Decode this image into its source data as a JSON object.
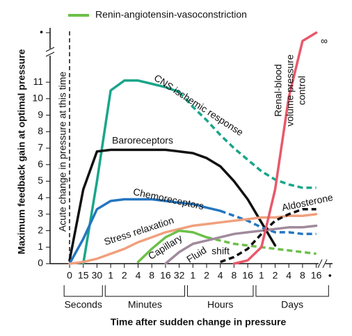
{
  "chart_data": {
    "type": "line",
    "title_y": "Maximum feedback gain at optimal pressure",
    "title_x": "Time after sudden change in pressure",
    "marker_label": "Acute change in pressure at this time",
    "infinity_label": "∞",
    "categories": [
      "0",
      "15",
      "30",
      "1",
      "2",
      "4",
      "8",
      "16",
      "32",
      "1",
      "2",
      "4",
      "8",
      "16",
      "1",
      "2",
      "4",
      "8",
      "16",
      "•"
    ],
    "groups": [
      "Seconds",
      "Minutes",
      "Hours",
      "Days"
    ],
    "ylim": [
      0,
      14
    ],
    "yticks": [
      0,
      1,
      2,
      3,
      4,
      5,
      6,
      7,
      8,
      9,
      10,
      11,
      {
        "value": 14,
        "label": "•"
      }
    ],
    "series": [
      {
        "label": [
          "CNS ischemic response"
        ],
        "color": "#1aa58a",
        "values": [
          null,
          0,
          5,
          10.5,
          11.1,
          11.1,
          10.9,
          10.7,
          10.4,
          null,
          null,
          null,
          null,
          null,
          null,
          null,
          null,
          null,
          null,
          null
        ],
        "dashed_values": [
          null,
          null,
          null,
          null,
          null,
          null,
          null,
          null,
          10.4,
          9.5,
          8.7,
          7.8,
          7,
          6.3,
          5.6,
          5.1,
          4.8,
          4.6,
          4.6,
          null
        ]
      },
      {
        "label": [
          "Baroreceptors"
        ],
        "color": "#111111",
        "values": [
          0.2,
          4.5,
          6.8,
          6.9,
          6.9,
          6.9,
          6.9,
          6.9,
          6.8,
          6.7,
          6.4,
          5.9,
          5,
          3.9,
          2.5,
          1.1,
          null,
          null,
          null,
          null
        ]
      },
      {
        "label": [
          "Chemoreceptors"
        ],
        "color": "#2476c0",
        "values": [
          0,
          1.5,
          3.3,
          3.8,
          3.9,
          3.9,
          3.9,
          3.8,
          3.7,
          3.6,
          3.4,
          3.2,
          null,
          null,
          null,
          null,
          null,
          null,
          null,
          null
        ],
        "dashed_values": [
          null,
          null,
          null,
          null,
          null,
          null,
          null,
          null,
          null,
          null,
          null,
          3.2,
          2.9,
          2.6,
          2.2,
          1.9,
          1.9,
          1.8,
          1.8,
          null
        ]
      },
      {
        "label": [
          "Stress relaxation"
        ],
        "color": "#f0a07e",
        "values": [
          0,
          0.1,
          0.3,
          0.6,
          0.9,
          1.3,
          1.6,
          1.9,
          2.1,
          2.3,
          2.4,
          2.5,
          2.6,
          2.7,
          2.8,
          2.8,
          2.9,
          2.9,
          3,
          null
        ]
      },
      {
        "name": "Renin-angiotensin-vasoconstriction",
        "color": "#6cc04a",
        "values": [
          null,
          null,
          null,
          null,
          null,
          0.1,
          0.9,
          1.6,
          2,
          1.9,
          1.6,
          null,
          null,
          null,
          null,
          null,
          null,
          null,
          null,
          null
        ],
        "dashed_values": [
          null,
          null,
          null,
          null,
          null,
          null,
          null,
          null,
          null,
          null,
          1.6,
          1.4,
          1.2,
          1.1,
          1,
          0.9,
          0.8,
          0.7,
          0.6,
          null
        ]
      },
      {
        "label": [
          "Capillary",
          "Fluid",
          "shift"
        ],
        "color": "#a08a9c",
        "values": [
          null,
          null,
          null,
          null,
          null,
          null,
          null,
          0,
          0.7,
          1.2,
          1.4,
          1.6,
          1.8,
          1.9,
          2,
          2.1,
          2.2,
          2.2,
          2.3,
          null
        ]
      },
      {
        "label": [
          "Aldosterone"
        ],
        "color": "#111111",
        "dashed_values": [
          null,
          null,
          null,
          null,
          null,
          null,
          null,
          null,
          null,
          null,
          null,
          0.1,
          0.4,
          0.9,
          1.8,
          2.6,
          3,
          3.3,
          3.3,
          null
        ]
      },
      {
        "label": [
          "Renal-blood",
          "volume pressure",
          "control"
        ],
        "color": "#e9586a",
        "values": [
          null,
          null,
          null,
          null,
          null,
          null,
          null,
          null,
          null,
          null,
          null,
          null,
          0,
          0.2,
          1,
          4.5,
          10.1,
          13.5,
          14,
          null
        ]
      }
    ]
  }
}
